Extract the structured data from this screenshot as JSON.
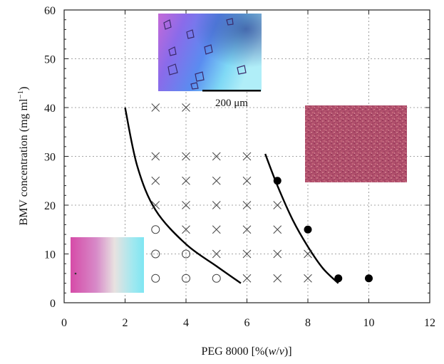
{
  "chart_data": {
    "type": "scatter",
    "xlabel": "PEG 8000 [%(w/v)]",
    "ylabel": "BMV concentration (mg ml−1)",
    "xlim": [
      0,
      12
    ],
    "ylim": [
      0,
      60
    ],
    "xticks": [
      0,
      2,
      4,
      6,
      8,
      10,
      12
    ],
    "yticks": [
      0,
      10,
      20,
      30,
      40,
      50,
      60
    ],
    "grid": true,
    "series": [
      {
        "marker": "open-circle",
        "points": [
          [
            3,
            15
          ],
          [
            3,
            10
          ],
          [
            3,
            5
          ],
          [
            4,
            10
          ],
          [
            4,
            5
          ],
          [
            5,
            5
          ]
        ]
      },
      {
        "marker": "cross",
        "points": [
          [
            3,
            40
          ],
          [
            4,
            40
          ],
          [
            3,
            30
          ],
          [
            4,
            30
          ],
          [
            5,
            30
          ],
          [
            6,
            30
          ],
          [
            3,
            25
          ],
          [
            4,
            25
          ],
          [
            5,
            25
          ],
          [
            6,
            25
          ],
          [
            3,
            20
          ],
          [
            4,
            20
          ],
          [
            5,
            20
          ],
          [
            6,
            20
          ],
          [
            7,
            20
          ],
          [
            4,
            15
          ],
          [
            5,
            15
          ],
          [
            6,
            15
          ],
          [
            7,
            15
          ],
          [
            5,
            10
          ],
          [
            6,
            10
          ],
          [
            7,
            10
          ],
          [
            8,
            10
          ],
          [
            6,
            5
          ],
          [
            7,
            5
          ],
          [
            8,
            5
          ]
        ]
      },
      {
        "marker": "filled-circle",
        "points": [
          [
            7,
            25
          ],
          [
            8,
            15
          ],
          [
            9,
            5
          ],
          [
            10,
            5
          ]
        ]
      }
    ],
    "boundaries": [
      {
        "name": "",
        "points": [
          [
            2,
            40
          ],
          [
            2.4,
            28
          ],
          [
            3,
            19
          ],
          [
            4,
            12
          ],
          [
            5,
            7.5
          ],
          [
            5.8,
            4
          ]
        ]
      },
      {
        "name": "",
        "points": [
          [
            6.6,
            30.5
          ],
          [
            7,
            24
          ],
          [
            7.5,
            17
          ],
          [
            8,
            11.5
          ],
          [
            8.5,
            7
          ],
          [
            9,
            4
          ]
        ]
      }
    ],
    "insets": [
      {
        "name": "crystals-photo",
        "scale_bar": "200 μm"
      },
      {
        "name": "precipitate-photo"
      },
      {
        "name": "clear-solution-photo"
      }
    ],
    "colors": {
      "grid": "#888888",
      "marker": "#444444",
      "filled_marker": "#000000",
      "curve": "#000000"
    }
  }
}
